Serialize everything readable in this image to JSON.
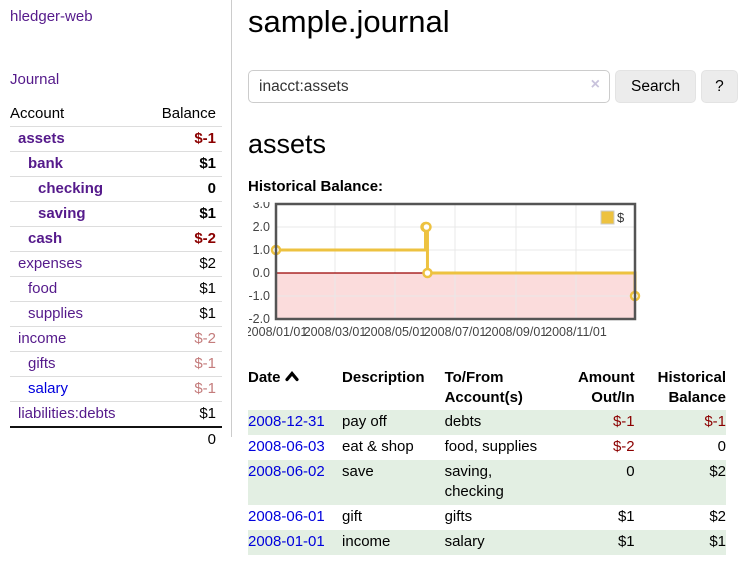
{
  "app": {
    "title": "hledger-web"
  },
  "sidebar": {
    "journal_label": "Journal",
    "accounts_table": {
      "headers": {
        "account": "Account",
        "balance": "Balance"
      },
      "rows": [
        {
          "account": "assets",
          "depth": 0,
          "bold": true,
          "balance": "$-1",
          "balance_style": "negative"
        },
        {
          "account": "bank",
          "depth": 1,
          "bold": true,
          "balance": "$1",
          "balance_style": "normal"
        },
        {
          "account": "checking",
          "depth": 2,
          "bold": true,
          "balance": "0",
          "balance_style": "normal"
        },
        {
          "account": "saving",
          "depth": 2,
          "bold": true,
          "balance": "$1",
          "balance_style": "normal"
        },
        {
          "account": "cash",
          "depth": 1,
          "bold": true,
          "balance": "$-2",
          "balance_style": "negative"
        },
        {
          "account": "expenses",
          "depth": 0,
          "bold": false,
          "balance": "$2",
          "balance_style": "normal"
        },
        {
          "account": "food",
          "depth": 1,
          "bold": false,
          "balance": "$1",
          "balance_style": "normal"
        },
        {
          "account": "supplies",
          "depth": 1,
          "bold": false,
          "balance": "$1",
          "balance_style": "normal"
        },
        {
          "account": "income",
          "depth": 0,
          "bold": false,
          "balance": "$-2",
          "balance_style": "negative-muted"
        },
        {
          "account": "gifts",
          "depth": 1,
          "bold": false,
          "balance": "$-1",
          "balance_style": "negative-muted"
        },
        {
          "account": "salary",
          "depth": 1,
          "bold": false,
          "link_style": "unvisited",
          "balance": "$-1",
          "balance_style": "negative-muted"
        },
        {
          "account": "liabilities:debts",
          "depth": 0,
          "bold": false,
          "balance": "$1",
          "balance_style": "normal"
        }
      ],
      "total": "0"
    }
  },
  "main": {
    "title": "sample.journal",
    "search": {
      "value": "inacct:assets",
      "clear_icon": "×",
      "button_label": "Search",
      "help_label": "?"
    },
    "account_heading": "assets",
    "chart_label": "Historical Balance:"
  },
  "chart_data": {
    "type": "line",
    "step": true,
    "title": "Historical Balance",
    "series": [
      {
        "name": "$",
        "color": "#edc240",
        "points": [
          [
            "2008-01-01",
            1
          ],
          [
            "2008-06-01",
            2
          ],
          [
            "2008-06-02",
            2
          ],
          [
            "2008-06-03",
            0
          ],
          [
            "2008-12-31",
            -1
          ]
        ]
      }
    ],
    "xlim": [
      "2008-01-01",
      "2008-12-31"
    ],
    "ylim": [
      -2,
      3
    ],
    "x_ticks": [
      {
        "date": "2008-01-01",
        "label": "2008/01/01"
      },
      {
        "date": "2008-03-01",
        "label": "2008/03/01"
      },
      {
        "date": "2008-05-01",
        "label": "2008/05/01"
      },
      {
        "date": "2008-07-01",
        "label": "2008/07/01"
      },
      {
        "date": "2008-09-01",
        "label": "2008/09/01"
      },
      {
        "date": "2008-11-01",
        "label": "2008/11/01"
      }
    ],
    "y_ticks": [
      {
        "value": 3,
        "label": "3.0"
      },
      {
        "value": 2,
        "label": "2.0"
      },
      {
        "value": 1,
        "label": "1.0"
      },
      {
        "value": 0,
        "label": "0.0"
      },
      {
        "value": -1,
        "label": "-1.0"
      },
      {
        "value": -2,
        "label": "-2.0"
      }
    ],
    "legend": {
      "position": "top-right",
      "label": "$"
    },
    "grid_on": true,
    "negative_fill": "#fbdcdc",
    "zero_line_color": "#990000",
    "grid_color": "#e8e8e8",
    "border_color": "#545454",
    "tick_label_color": "#444444"
  },
  "register": {
    "headers": [
      {
        "label": "Date",
        "sorted": "asc"
      },
      {
        "label": "Description"
      },
      {
        "label": "To/From Account(s)"
      },
      {
        "label": "Amount Out/In"
      },
      {
        "label": "Historical Balance"
      }
    ],
    "rows": [
      {
        "date": "2008-12-31",
        "description": "pay off",
        "accounts": "debts",
        "amount": "$-1",
        "amount_neg": true,
        "balance": "$-1",
        "balance_neg": true,
        "shaded": true
      },
      {
        "date": "2008-06-03",
        "description": "eat & shop",
        "accounts": "food, supplies",
        "amount": "$-2",
        "amount_neg": true,
        "balance": "0",
        "balance_neg": false,
        "shaded": false
      },
      {
        "date": "2008-06-02",
        "description": "save",
        "accounts": "saving,\nchecking",
        "amount": "0",
        "amount_neg": false,
        "balance": "$2",
        "balance_neg": false,
        "shaded": true
      },
      {
        "date": "2008-06-01",
        "description": "gift",
        "accounts": "gifts",
        "amount": "$1",
        "amount_neg": false,
        "balance": "$2",
        "balance_neg": false,
        "shaded": false
      },
      {
        "date": "2008-01-01",
        "description": "income",
        "accounts": "salary",
        "amount": "$1",
        "amount_neg": false,
        "balance": "$1",
        "balance_neg": false,
        "shaded": true
      }
    ]
  },
  "colors": {
    "visited_link": "#551a8b",
    "unvisited_link": "#0000dd",
    "negative_amount": "#8b0000",
    "negative_muted": "#c47c7c",
    "row_stripe": "#e3efe3",
    "series_yellow": "#edc240"
  }
}
